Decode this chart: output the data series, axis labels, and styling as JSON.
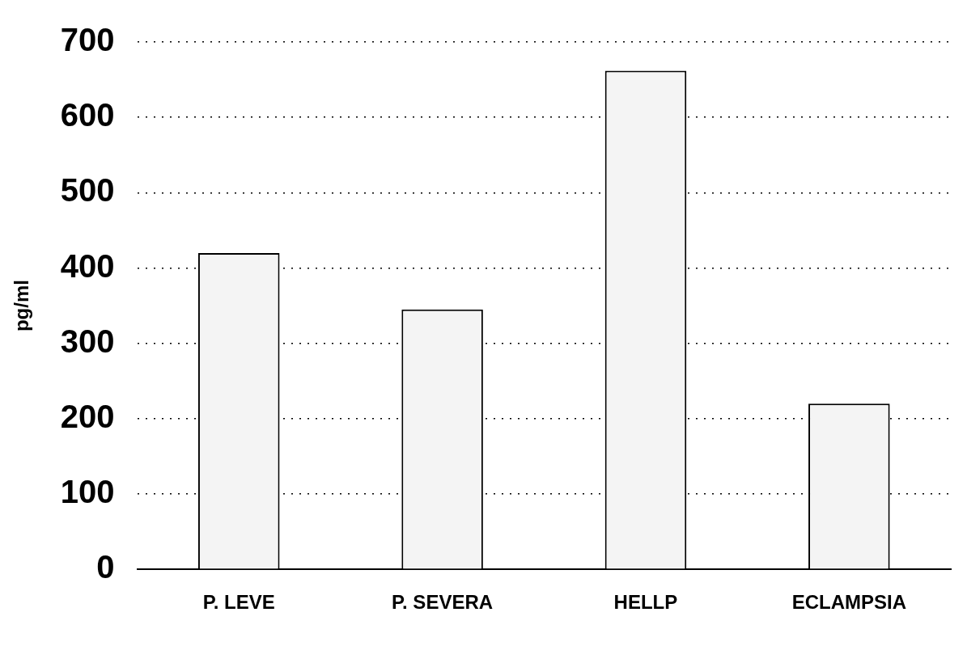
{
  "chart_data": {
    "type": "bar",
    "ylabel": "pg/ml",
    "categories": [
      "P. LEVE",
      "P. SEVERA",
      "HELLP",
      "ECLAMPSIA"
    ],
    "values": [
      420,
      345,
      662,
      220
    ],
    "color": "#f4f4f4",
    "ylim": [
      0,
      700
    ],
    "yticks": [
      0,
      100,
      200,
      300,
      400,
      500,
      600,
      700
    ],
    "grid": "y"
  }
}
